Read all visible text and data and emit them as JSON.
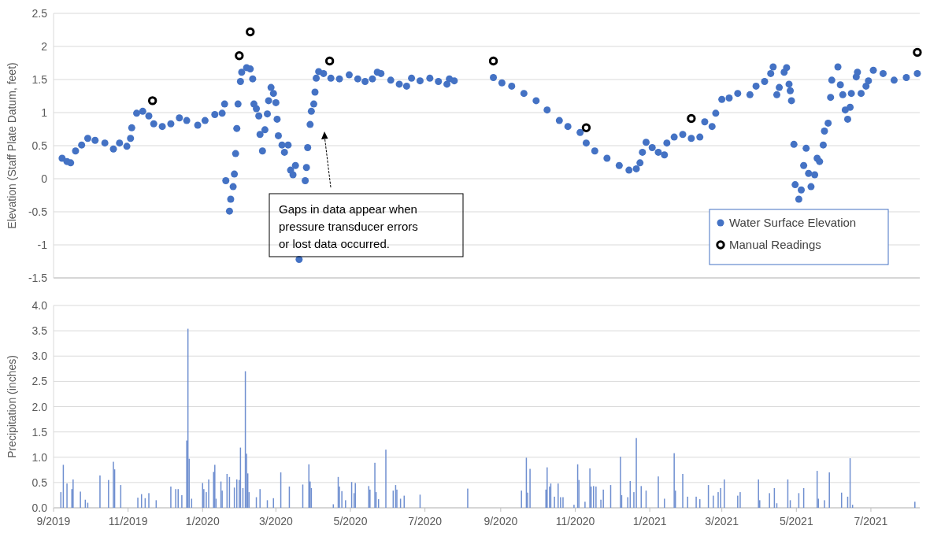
{
  "chart_data": [
    {
      "type": "scatter",
      "ylabel": "Elevation (Staff Plate Datum, feet)",
      "xlim": [
        "2019-09-01",
        "2021-08-10"
      ],
      "ylim": [
        -1.5,
        2.5
      ],
      "yticks": [
        -1.5,
        -1,
        -0.5,
        0,
        0.5,
        1,
        1.5,
        2,
        2.5
      ],
      "tick_labels": "y",
      "grid": "y",
      "legend": "bottom right",
      "marker": "circle",
      "annotations": [
        "Gaps in data appear when pressure transducer errors or lost data occurred."
      ],
      "series": [
        {
          "name": "Water Surface Elevation",
          "color": "#4472c4",
          "x": [
            "2019-09-08",
            "2019-09-12",
            "2019-09-15",
            "2019-09-19",
            "2019-09-24",
            "2019-09-29",
            "2019-10-05",
            "2019-10-13",
            "2019-10-20",
            "2019-10-25",
            "2019-10-31",
            "2019-11-03",
            "2019-11-04",
            "2019-11-08",
            "2019-11-13",
            "2019-11-18",
            "2019-11-22",
            "2019-11-29",
            "2019-12-06",
            "2019-12-13",
            "2019-12-19",
            "2019-12-28",
            "2020-01-03",
            "2020-01-11",
            "2020-01-17",
            "2020-01-19",
            "2020-01-20",
            "2020-01-23",
            "2020-01-24",
            "2020-01-26",
            "2020-01-27",
            "2020-01-28",
            "2020-01-29",
            "2020-01-30",
            "2020-02-01",
            "2020-02-02",
            "2020-02-06",
            "2020-02-09",
            "2020-02-11",
            "2020-02-12",
            "2020-02-14",
            "2020-02-16",
            "2020-02-17",
            "2020-02-19",
            "2020-02-21",
            "2020-02-23",
            "2020-02-24",
            "2020-02-26",
            "2020-02-28",
            "2020-03-01",
            "2020-03-02",
            "2020-03-03",
            "2020-03-06",
            "2020-03-08",
            "2020-03-11",
            "2020-03-13",
            "2020-03-15",
            "2020-03-17",
            "2020-03-20",
            "2020-03-25",
            "2020-03-26",
            "2020-03-27",
            "2020-03-29",
            "2020-03-30",
            "2020-04-01",
            "2020-04-02",
            "2020-04-03",
            "2020-04-05",
            "2020-04-09",
            "2020-04-15",
            "2020-04-22",
            "2020-04-30",
            "2020-05-07",
            "2020-05-13",
            "2020-05-19",
            "2020-05-23",
            "2020-05-26",
            "2020-06-03",
            "2020-06-10",
            "2020-06-16",
            "2020-06-20",
            "2020-06-27",
            "2020-07-05",
            "2020-07-12",
            "2020-07-19",
            "2020-07-21",
            "2020-07-25",
            "2020-08-26",
            "2020-09-02",
            "2020-09-10",
            "2020-09-20",
            "2020-09-30",
            "2020-10-09",
            "2020-10-19",
            "2020-10-26",
            "2020-11-05",
            "2020-11-10",
            "2020-11-17",
            "2020-11-27",
            "2020-12-07",
            "2020-12-15",
            "2020-12-21",
            "2020-12-24",
            "2020-12-26",
            "2020-12-29",
            "2021-01-03",
            "2021-01-08",
            "2021-01-13",
            "2021-01-15",
            "2021-01-21",
            "2021-01-28",
            "2021-02-04",
            "2021-02-11",
            "2021-02-15",
            "2021-02-21",
            "2021-02-24",
            "2021-03-01",
            "2021-03-07",
            "2021-03-14",
            "2021-03-24",
            "2021-03-29",
            "2021-04-05",
            "2021-04-10",
            "2021-04-12",
            "2021-04-15",
            "2021-04-17",
            "2021-04-21",
            "2021-04-23",
            "2021-04-25",
            "2021-04-26",
            "2021-04-27",
            "2021-04-29",
            "2021-04-30",
            "2021-05-03",
            "2021-05-05",
            "2021-05-07",
            "2021-05-09",
            "2021-05-11",
            "2021-05-13",
            "2021-05-16",
            "2021-05-18",
            "2021-05-20",
            "2021-05-23",
            "2021-05-24",
            "2021-05-27",
            "2021-05-29",
            "2021-05-30",
            "2021-06-04",
            "2021-06-06",
            "2021-06-08",
            "2021-06-10",
            "2021-06-12",
            "2021-06-14",
            "2021-06-15",
            "2021-06-19",
            "2021-06-20",
            "2021-06-23",
            "2021-06-27",
            "2021-06-29",
            "2021-07-03",
            "2021-07-11",
            "2021-07-20",
            "2021-07-30",
            "2021-08-08"
          ],
          "values": [
            0.31,
            0.26,
            0.24,
            0.42,
            0.51,
            0.61,
            0.58,
            0.54,
            0.45,
            0.54,
            0.49,
            0.61,
            0.77,
            0.99,
            1.02,
            0.95,
            0.83,
            0.79,
            0.83,
            0.92,
            0.88,
            0.81,
            0.88,
            0.97,
            0.99,
            1.13,
            -0.03,
            -0.49,
            -0.31,
            -0.12,
            0.07,
            0.38,
            0.76,
            1.13,
            1.47,
            1.61,
            1.68,
            1.66,
            1.51,
            1.13,
            1.06,
            0.95,
            0.67,
            0.42,
            0.74,
            0.98,
            1.18,
            1.38,
            1.29,
            1.15,
            0.9,
            0.65,
            0.51,
            0.4,
            0.51,
            0.13,
            0.06,
            0.2,
            -1.22,
            -0.03,
            0.17,
            0.47,
            0.82,
            1.02,
            1.13,
            1.31,
            1.52,
            1.62,
            1.59,
            1.52,
            1.51,
            1.57,
            1.51,
            1.47,
            1.51,
            1.61,
            1.59,
            1.49,
            1.43,
            1.4,
            1.52,
            1.48,
            1.52,
            1.47,
            1.43,
            1.51,
            1.48,
            1.53,
            1.45,
            1.4,
            1.29,
            1.18,
            1.04,
            0.88,
            0.79,
            0.7,
            0.54,
            0.42,
            0.31,
            0.2,
            0.13,
            0.15,
            0.24,
            0.4,
            0.55,
            0.47,
            0.4,
            0.36,
            0.54,
            0.63,
            0.67,
            0.61,
            0.63,
            0.86,
            0.79,
            0.99,
            1.2,
            1.22,
            1.29,
            1.27,
            1.4,
            1.47,
            1.59,
            1.69,
            1.27,
            1.38,
            1.61,
            1.68,
            1.43,
            1.33,
            1.18,
            0.52,
            -0.09,
            -0.31,
            -0.17,
            0.2,
            0.46,
            0.08,
            -0.12,
            0.06,
            0.31,
            0.26,
            0.51,
            0.72,
            0.84,
            1.23,
            1.49,
            1.69,
            1.42,
            1.27,
            1.04,
            0.9,
            1.08,
            1.29,
            1.54,
            1.61,
            1.29,
            1.4,
            1.48,
            1.64,
            1.59,
            1.49,
            1.53,
            1.59
          ]
        },
        {
          "name": "Manual Readings",
          "color": "#000000",
          "x": [
            "2019-11-21",
            "2020-01-31",
            "2020-02-09",
            "2020-04-14",
            "2020-08-26",
            "2020-11-10",
            "2021-02-04",
            "2021-08-08"
          ],
          "values": [
            1.18,
            1.86,
            2.22,
            1.78,
            1.78,
            0.77,
            0.91,
            1.91
          ]
        }
      ]
    },
    {
      "type": "bar",
      "ylabel": "Precipitation (inches)",
      "xlim": [
        "2019-09-01",
        "2021-08-10"
      ],
      "ylim": [
        0,
        4
      ],
      "yticks": [
        {
          "value": 0,
          "label": "0.0"
        },
        {
          "value": 0.5,
          "label": "0.5"
        },
        {
          "value": 1,
          "label": "1.0"
        },
        {
          "value": 1.5,
          "label": "1.5"
        },
        {
          "value": 2,
          "label": "2.0"
        },
        {
          "value": 2.5,
          "label": "2.5"
        },
        {
          "value": 3,
          "label": "3.0"
        },
        {
          "value": 3.5,
          "label": "3.5"
        },
        {
          "value": 4,
          "label": "4.0"
        }
      ],
      "xticks": [
        {
          "value": "2019-09-01",
          "label": "9/2019"
        },
        {
          "value": "2019-11-01",
          "label": "11/2019"
        },
        {
          "value": "2020-01-01",
          "label": "1/2020"
        },
        {
          "value": "2020-03-01",
          "label": "3/2020"
        },
        {
          "value": "2020-05-01",
          "label": "5/2020"
        },
        {
          "value": "2020-07-01",
          "label": "7/2020"
        },
        {
          "value": "2020-09-01",
          "label": "9/2020"
        },
        {
          "value": "2020-11-01",
          "label": "11/2020"
        },
        {
          "value": "2021-01-01",
          "label": "1/2021"
        },
        {
          "value": "2021-03-01",
          "label": "3/2021"
        },
        {
          "value": "2021-05-01",
          "label": "5/2021"
        },
        {
          "value": "2021-07-01",
          "label": "7/2021"
        }
      ],
      "grid": "y",
      "series": [
        {
          "color": "#6f8fd0",
          "x": [
            "2019-09-07",
            "2019-09-09",
            "2019-09-12",
            "2019-09-16",
            "2019-09-17",
            "2019-09-23",
            "2019-09-27",
            "2019-09-29",
            "2019-10-09",
            "2019-10-16",
            "2019-10-20",
            "2019-10-21",
            "2019-10-26",
            "2019-11-09",
            "2019-11-12",
            "2019-11-15",
            "2019-11-18",
            "2019-11-24",
            "2019-12-06",
            "2019-12-10",
            "2019-12-12",
            "2019-12-15",
            "2019-12-19",
            "2019-12-20",
            "2019-12-21",
            "2019-12-23",
            "2020-01-01",
            "2020-01-02",
            "2020-01-04",
            "2020-01-06",
            "2020-01-10",
            "2020-01-11",
            "2020-01-12",
            "2020-01-16",
            "2020-01-17",
            "2020-01-21",
            "2020-01-23",
            "2020-01-27",
            "2020-01-29",
            "2020-01-31",
            "2020-02-01",
            "2020-02-03",
            "2020-02-05",
            "2020-02-06",
            "2020-02-07",
            "2020-02-08",
            "2020-02-14",
            "2020-02-17",
            "2020-02-23",
            "2020-02-28",
            "2020-03-05",
            "2020-03-12",
            "2020-03-23",
            "2020-03-28",
            "2020-03-29",
            "2020-03-30",
            "2020-04-17",
            "2020-04-21",
            "2020-04-22",
            "2020-04-24",
            "2020-04-27",
            "2020-05-02",
            "2020-05-04",
            "2020-05-05",
            "2020-05-16",
            "2020-05-17",
            "2020-05-21",
            "2020-05-22",
            "2020-05-24",
            "2020-05-30",
            "2020-06-05",
            "2020-06-07",
            "2020-06-08",
            "2020-06-11",
            "2020-06-14",
            "2020-06-27",
            "2020-08-05",
            "2020-09-18",
            "2020-09-22",
            "2020-09-23",
            "2020-09-25",
            "2020-10-08",
            "2020-10-09",
            "2020-10-11",
            "2020-10-12",
            "2020-10-15",
            "2020-10-18",
            "2020-10-20",
            "2020-10-22",
            "2020-10-31",
            "2020-11-03",
            "2020-11-04",
            "2020-11-09",
            "2020-11-13",
            "2020-11-14",
            "2020-11-16",
            "2020-11-18",
            "2020-11-22",
            "2020-11-24",
            "2020-11-30",
            "2020-12-08",
            "2020-12-09",
            "2020-12-14",
            "2020-12-16",
            "2020-12-19",
            "2020-12-21",
            "2020-12-25",
            "2020-12-29",
            "2021-01-08",
            "2021-01-13",
            "2021-01-21",
            "2021-01-22",
            "2021-01-28",
            "2021-02-01",
            "2021-02-08",
            "2021-02-11",
            "2021-02-18",
            "2021-02-22",
            "2021-02-26",
            "2021-02-28",
            "2021-03-03",
            "2021-03-14",
            "2021-03-16",
            "2021-03-31",
            "2021-04-01",
            "2021-04-09",
            "2021-04-13",
            "2021-04-15",
            "2021-04-24",
            "2021-04-26",
            "2021-05-03",
            "2021-05-07",
            "2021-05-18",
            "2021-05-19",
            "2021-05-24",
            "2021-05-28",
            "2021-06-07",
            "2021-06-12",
            "2021-06-14",
            "2021-06-16",
            "2021-08-06"
          ],
          "values": [
            0.31,
            0.85,
            0.48,
            0.37,
            0.56,
            0.32,
            0.16,
            0.1,
            0.64,
            0.55,
            0.91,
            0.76,
            0.45,
            0.2,
            0.27,
            0.19,
            0.29,
            0.15,
            0.42,
            0.37,
            0.37,
            0.25,
            1.33,
            3.54,
            0.97,
            0.18,
            0.49,
            0.37,
            0.31,
            0.56,
            0.71,
            0.85,
            0.18,
            0.52,
            0.34,
            0.67,
            0.61,
            0.4,
            0.56,
            0.55,
            1.19,
            0.39,
            2.7,
            1.07,
            0.68,
            0.31,
            0.21,
            0.37,
            0.15,
            0.19,
            0.7,
            0.42,
            0.46,
            0.86,
            0.52,
            0.39,
            0.07,
            0.61,
            0.42,
            0.33,
            0.15,
            0.51,
            0.29,
            0.49,
            0.43,
            0.36,
            0.89,
            0.31,
            0.17,
            1.15,
            0.34,
            0.45,
            0.36,
            0.18,
            0.24,
            0.26,
            0.38,
            0.34,
            0.99,
            0.3,
            0.77,
            0.36,
            0.8,
            0.42,
            0.48,
            0.22,
            0.48,
            0.21,
            0.21,
            0.06,
            0.86,
            0.55,
            0.12,
            0.78,
            0.42,
            0.43,
            0.42,
            0.16,
            0.36,
            0.45,
            1.01,
            0.25,
            0.21,
            0.53,
            0.31,
            1.38,
            0.43,
            0.34,
            0.62,
            0.18,
            1.08,
            0.34,
            0.67,
            0.22,
            0.22,
            0.17,
            0.45,
            0.24,
            0.31,
            0.39,
            0.56,
            0.24,
            0.31,
            0.56,
            0.15,
            0.29,
            0.39,
            0.09,
            0.56,
            0.15,
            0.29,
            0.39,
            0.73,
            0.18,
            0.15,
            0.7,
            0.3,
            0.22,
            0.98,
            0.06,
            0.12
          ]
        }
      ]
    }
  ]
}
